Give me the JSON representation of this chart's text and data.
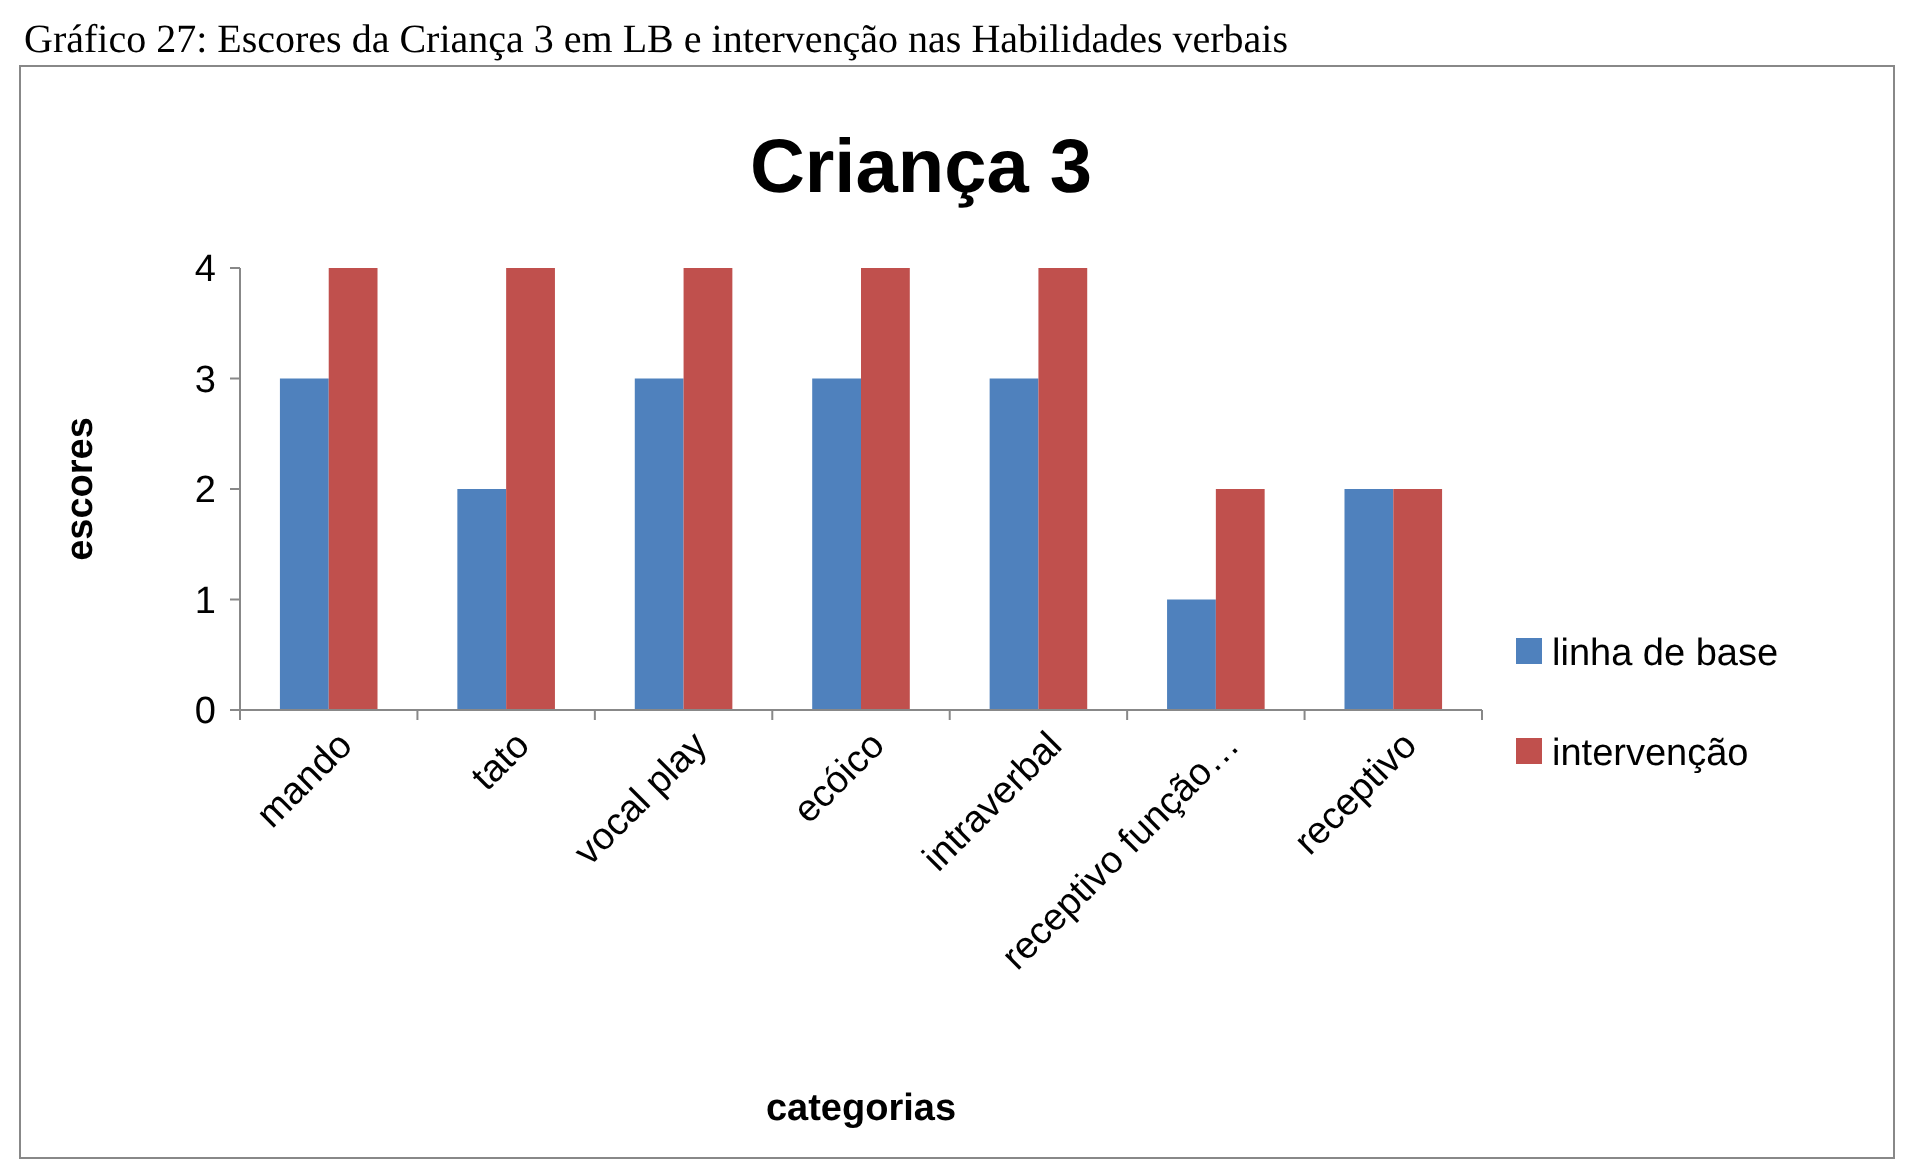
{
  "chart_data": {
    "type": "bar",
    "title": "Criança 3",
    "xlabel": "categorias",
    "ylabel": "escores",
    "annotations": [
      "Gráfico 27: Escores da Criança 3 em LB e intervenção nas Habilidades verbais"
    ],
    "categories": [
      "mando",
      "tato",
      "vocal play",
      "ecóico",
      "intraverbal",
      "receptivo função…",
      "receptivo"
    ],
    "series": [
      {
        "name": "linha de base",
        "color": "#4f81bd",
        "values": [
          3,
          2,
          3,
          3,
          3,
          1,
          2
        ]
      },
      {
        "name": "intervenção",
        "color": "#c0504d",
        "values": [
          4,
          4,
          4,
          4,
          4,
          2,
          2
        ]
      }
    ],
    "ylim": [
      0,
      4
    ],
    "yticks": [
      0,
      1,
      2,
      3,
      4
    ],
    "grid": false,
    "legend": "right"
  }
}
